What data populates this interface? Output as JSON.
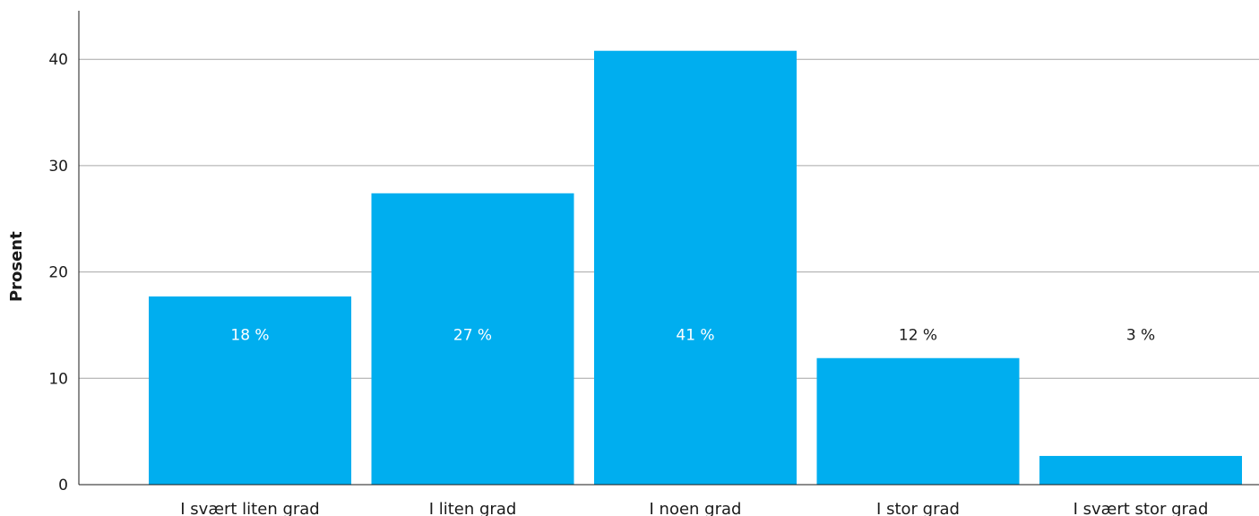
{
  "chart_data": {
    "type": "bar",
    "ylabel": "Prosent",
    "categories": [
      "I svært liten grad",
      "I liten grad",
      "I noen grad",
      "I stor grad",
      "I svært stor grad"
    ],
    "values": [
      17.7,
      27.4,
      40.8,
      11.9,
      2.7
    ],
    "data_labels": [
      "18 %",
      "27 %",
      "41 %",
      "12 %",
      "3 %"
    ],
    "ylim": [
      0,
      45
    ],
    "yticks": [
      0,
      10,
      20,
      30,
      40
    ],
    "grid": true,
    "colors": {
      "bar": "#00aeef",
      "label_inside": "#ffffff",
      "label_outside": "#1a1a1a",
      "grid": "#a6a6a6",
      "axis": "#1a1a1a"
    }
  }
}
